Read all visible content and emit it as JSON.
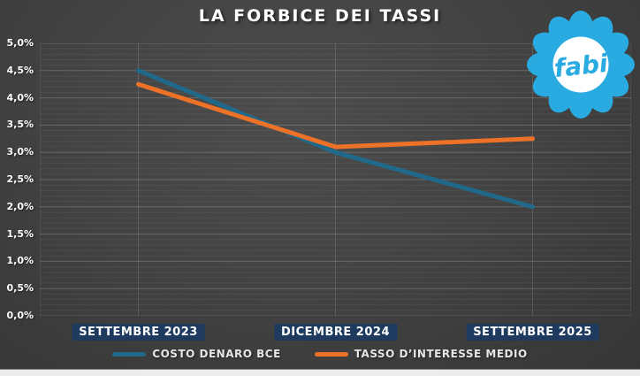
{
  "title": "LA FORBICE DEI TASSI",
  "logo": {
    "text": "fabi",
    "color": "#29ABE2"
  },
  "colors": {
    "background": "#434343",
    "grid_major": "rgba(255,255,255,0.20)",
    "grid_minor": "rgba(255,255,255,0.06)",
    "grid_vertical": "rgba(255,255,255,0.14)",
    "xlabel_background": "#1E3A5E",
    "text": "#FFFFFF",
    "legend_text": "#E6E6E6",
    "bottom_strip": "#ECECEC"
  },
  "chart_data": {
    "type": "line",
    "title": "LA FORBICE DEI TASSI",
    "categories": [
      "SETTEMBRE 2023",
      "DICEMBRE 2024",
      "SETTEMBRE 2025"
    ],
    "series": [
      {
        "name": "COSTO DENARO BCE",
        "color": "#20698A",
        "values": [
          4.5,
          3.0,
          2.0
        ]
      },
      {
        "name": "TASSO D’INTERESSE MEDIO",
        "color": "#ED7228",
        "values": [
          4.25,
          3.1,
          3.25
        ]
      }
    ],
    "ylabel": "",
    "xlabel": "",
    "ylim": [
      0,
      5
    ],
    "ytick_step": 0.5,
    "ytick_minor_step": 0.1,
    "ytick_labels": [
      "0,0%",
      "0,5%",
      "1,0%",
      "1,5%",
      "2,0%",
      "2,5%",
      "3,0%",
      "3,5%",
      "4,0%",
      "4,5%",
      "5,0%"
    ],
    "grid": "major+minor horizontal, vertical at categories",
    "legend_position": "bottom"
  }
}
